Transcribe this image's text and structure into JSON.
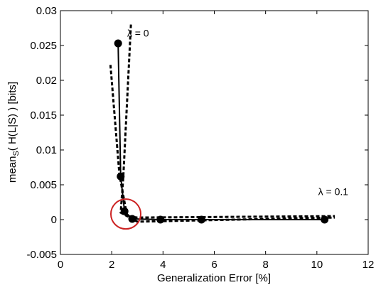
{
  "chart_data": {
    "type": "line",
    "xlabel": "Generalization Error [%]",
    "ylabel": {
      "prefix": "mean",
      "subscript": "S",
      "suffix": "( H(L|S) ) [bits]"
    },
    "xlim": [
      0,
      12
    ],
    "ylim": [
      -0.005,
      0.03
    ],
    "x_ticks": [
      0,
      2,
      4,
      6,
      8,
      10,
      12
    ],
    "y_ticks": [
      -0.005,
      0,
      0.005,
      0.01,
      0.015,
      0.02,
      0.025,
      0.03
    ],
    "x_tick_labels": [
      "0",
      "2",
      "4",
      "6",
      "8",
      "10",
      "12"
    ],
    "y_tick_labels": [
      "-0.005",
      "0",
      "0.005",
      "0.01",
      "0.015",
      "0.02",
      "0.025",
      "0.03"
    ],
    "grid": false,
    "series": [
      {
        "style": "solid-with-markers",
        "color": "#000000",
        "points": [
          {
            "x": 2.25,
            "y": 0.0253
          },
          {
            "x": 2.35,
            "y": 0.0062
          },
          {
            "x": 2.5,
            "y": 0.0012
          },
          {
            "x": 2.8,
            "y": 0.0001
          },
          {
            "x": 3.9,
            "y": 0.0
          },
          {
            "x": 5.5,
            "y": 0.0
          },
          {
            "x": 10.3,
            "y": 0.0
          }
        ]
      },
      {
        "style": "dashed",
        "color": "#000000",
        "points": [
          {
            "x": 1.95,
            "y": 0.0222
          },
          {
            "x": 2.3,
            "y": 0.0065
          },
          {
            "x": 2.6,
            "y": 0.0005
          },
          {
            "x": 3.0,
            "y": 0.0003
          },
          {
            "x": 10.7,
            "y": 0.0005
          }
        ]
      },
      {
        "style": "dashed",
        "color": "#000000",
        "points": [
          {
            "x": 2.75,
            "y": 0.028
          },
          {
            "x": 2.45,
            "y": 0.006
          },
          {
            "x": 2.35,
            "y": 0.001
          },
          {
            "x": 3.0,
            "y": -0.0003
          },
          {
            "x": 10.7,
            "y": 0.0003
          }
        ]
      }
    ],
    "annotations": [
      {
        "text": "λ = 0",
        "x": 2.6,
        "y": 0.0263
      },
      {
        "text": "λ = 0.1",
        "x": 10.05,
        "y": 0.0035
      }
    ],
    "highlight": {
      "shape": "circle",
      "x": 2.55,
      "y": 0.0008,
      "color": "#cc2222"
    }
  }
}
